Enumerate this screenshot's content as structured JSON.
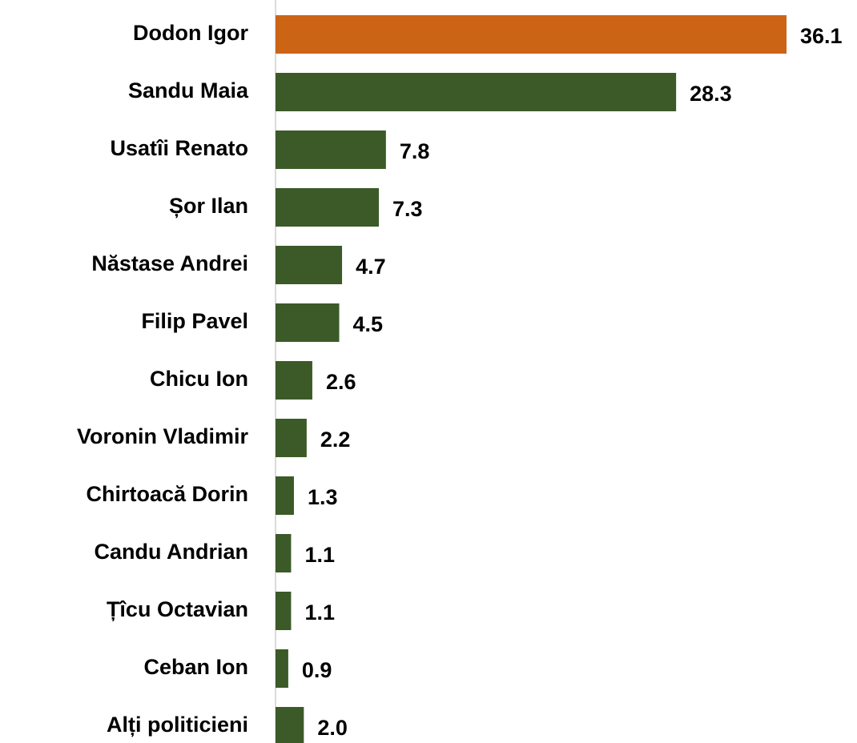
{
  "chart_data": {
    "type": "bar",
    "orientation": "horizontal",
    "categories": [
      "Dodon Igor",
      "Sandu Maia",
      "Usatîi Renato",
      "Șor Ilan",
      "Năstase Andrei",
      "Filip Pavel",
      "Chicu Ion",
      "Voronin Vladimir",
      "Chirtoacă Dorin",
      "Candu Andrian",
      "Țîcu Octavian",
      "Ceban Ion",
      "Alți politicieni"
    ],
    "values": [
      36.1,
      28.3,
      7.8,
      7.3,
      4.7,
      4.5,
      2.6,
      2.2,
      1.3,
      1.1,
      1.1,
      0.9,
      2.0
    ],
    "value_labels": [
      "36.1",
      "28.3",
      "7.8",
      "7.3",
      "4.7",
      "4.5",
      "2.6",
      "2.2",
      "1.3",
      "1.1",
      "1.1",
      "0.9",
      "2.0"
    ],
    "colors": [
      "#cc6416",
      "#3b5a27",
      "#3b5a27",
      "#3b5a27",
      "#3b5a27",
      "#3b5a27",
      "#3b5a27",
      "#3b5a27",
      "#3b5a27",
      "#3b5a27",
      "#3b5a27",
      "#3b5a27",
      "#3b5a27"
    ]
  }
}
